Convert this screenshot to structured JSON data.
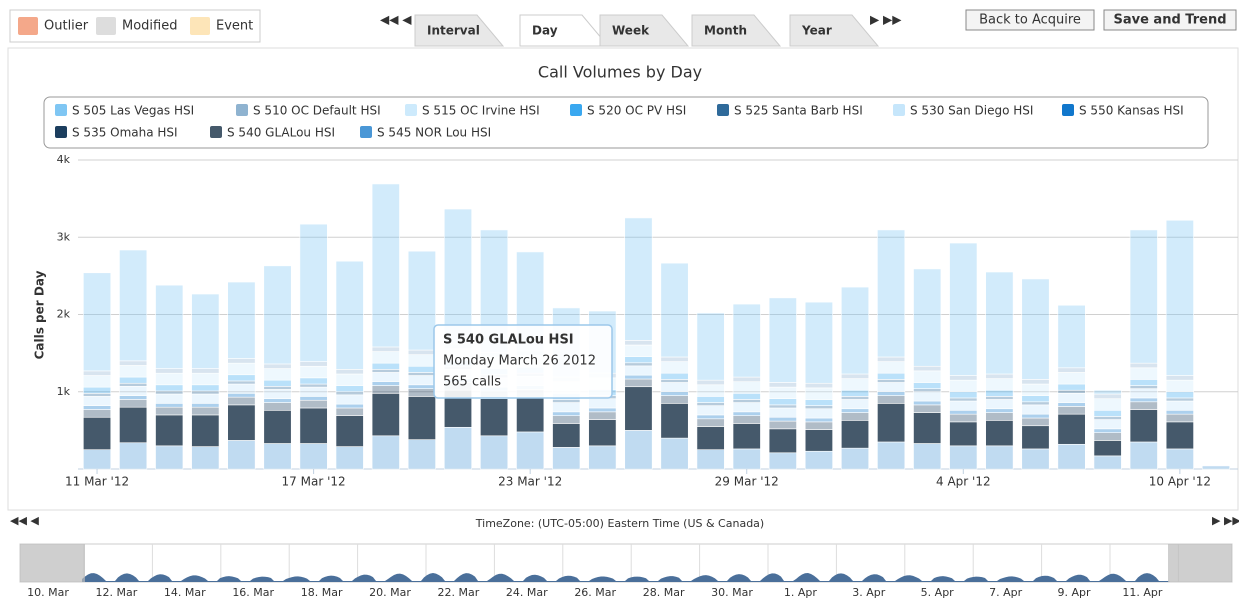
{
  "flags": [
    "Outlier",
    "Modified",
    "Event"
  ],
  "tabs": [
    "Interval",
    "Day",
    "Week",
    "Month",
    "Year"
  ],
  "buttons": [
    "Back to Acquire",
    "Save and Trend"
  ],
  "timezone": "TimeZone: (UTC-05:00) Eastern Time (US & Canada)",
  "navigator_labels": [
    "10. Mar",
    "12. Mar",
    "14. Mar",
    "16. Mar",
    "18. Mar",
    "20. Mar",
    "22. Mar",
    "24. Mar",
    "26. Mar",
    "28. Mar",
    "30. Mar",
    "1. Apr",
    "3. Apr",
    "5. Apr",
    "7. Apr",
    "9. Apr",
    "11. Apr"
  ],
  "tooltip": {
    "title": "S 540 GLALou HSI",
    "date": "Monday March 26 2012",
    "text": "565 calls"
  },
  "chart_data": {
    "type": "stacked_bar",
    "title": "Call Volumes by Day",
    "y_label": "Calls per Day",
    "categories": [
      "11 Mar '12",
      null,
      null,
      null,
      null,
      null,
      "17 Mar '12",
      null,
      null,
      null,
      null,
      null,
      "23 Mar '12",
      null,
      null,
      null,
      null,
      null,
      "29 Mar '12",
      null,
      null,
      null,
      null,
      null,
      "4 Apr '12",
      null,
      null,
      null,
      null,
      null,
      "10 Apr '12",
      null
    ],
    "ylim": [
      0,
      4000
    ],
    "yticks": [
      {
        "value": 1000,
        "label": "1k"
      },
      {
        "value": 2000,
        "label": "2k"
      },
      {
        "value": 3000,
        "label": "3k"
      },
      {
        "value": 4000,
        "label": "4k"
      }
    ],
    "grid": true,
    "highlight": "S 540 GLALou HSI",
    "series": [
      {
        "name": "S 505 Las Vegas HSI",
        "color": "#7fc6f3",
        "values": [
          1270,
          1435,
          1080,
          965,
          990,
          1270,
          1780,
          1400,
          2110,
          1280,
          1745,
          1585,
          1280,
          895,
          805,
          1585,
          1215,
          870,
          945,
          1095,
          1050,
          1125,
          1645,
          1260,
          1715,
          1320,
          1300,
          810,
          50,
          1725,
          2010,
          0
        ]
      },
      {
        "name": "S 510 OC Default HSI",
        "color": "#8fb3d0",
        "values": [
          60,
          60,
          60,
          60,
          60,
          60,
          60,
          60,
          60,
          60,
          60,
          60,
          60,
          60,
          60,
          60,
          60,
          60,
          60,
          60,
          60,
          60,
          60,
          60,
          60,
          60,
          60,
          60,
          60,
          60,
          60,
          0
        ]
      },
      {
        "name": "S 515 OC Irvine HSI",
        "color": "#cdeafc",
        "values": [
          150,
          150,
          150,
          150,
          150,
          150,
          150,
          150,
          150,
          150,
          150,
          150,
          150,
          150,
          150,
          150,
          150,
          150,
          150,
          150,
          150,
          150,
          150,
          150,
          150,
          150,
          150,
          150,
          150,
          150,
          150,
          0
        ]
      },
      {
        "name": "S 520 OC PV HSI",
        "color": "#3aa8f0",
        "values": [
          80,
          80,
          80,
          80,
          80,
          80,
          80,
          80,
          80,
          80,
          80,
          80,
          80,
          80,
          80,
          80,
          80,
          80,
          80,
          80,
          80,
          80,
          80,
          80,
          80,
          80,
          80,
          80,
          80,
          80,
          80,
          0
        ]
      },
      {
        "name": "S 525 Santa Barb HSI",
        "color": "#2f6a9a",
        "values": [
          40,
          40,
          40,
          40,
          40,
          40,
          40,
          40,
          40,
          40,
          40,
          40,
          40,
          40,
          40,
          40,
          40,
          40,
          40,
          40,
          40,
          40,
          40,
          40,
          40,
          40,
          40,
          40,
          40,
          40,
          40,
          0
        ]
      },
      {
        "name": "S 530 San Diego HSI",
        "color": "#c6e6fb",
        "values": [
          120,
          120,
          120,
          120,
          120,
          120,
          120,
          120,
          120,
          120,
          120,
          120,
          120,
          120,
          120,
          120,
          120,
          120,
          120,
          120,
          120,
          120,
          120,
          120,
          120,
          120,
          120,
          120,
          120,
          120,
          120,
          0
        ]
      },
      {
        "name": "S 550 Kansas HSI",
        "color": "#1177cc",
        "values": [
          50,
          50,
          50,
          50,
          50,
          50,
          50,
          50,
          50,
          50,
          50,
          50,
          50,
          50,
          50,
          50,
          50,
          50,
          50,
          50,
          50,
          50,
          50,
          50,
          50,
          50,
          50,
          50,
          50,
          50,
          50,
          0
        ]
      },
      {
        "name": "S 535 Omaha HSI",
        "color": "#1c3e5e",
        "values": [
          100,
          100,
          100,
          100,
          100,
          100,
          100,
          100,
          100,
          100,
          100,
          100,
          100,
          100,
          100,
          100,
          100,
          100,
          100,
          100,
          100,
          100,
          100,
          100,
          100,
          100,
          100,
          100,
          100,
          100,
          100,
          0
        ]
      },
      {
        "name": "S 540 GLALou HSI",
        "color": "#45596b",
        "values": [
          420,
          460,
          400,
          410,
          460,
          430,
          460,
          400,
          550,
          560,
          480,
          480,
          450,
          310,
          340,
          565,
          450,
          300,
          330,
          310,
          280,
          360,
          500,
          400,
          310,
          330,
          300,
          390,
          200,
          420,
          350,
          0
        ]
      },
      {
        "name": "S 545 NOR Lou HSI",
        "color": "#4a97d6",
        "values": [
          250,
          340,
          300,
          290,
          370,
          330,
          330,
          290,
          430,
          380,
          540,
          430,
          480,
          280,
          300,
          500,
          400,
          250,
          260,
          210,
          230,
          270,
          350,
          330,
          300,
          300,
          260,
          320,
          170,
          350,
          260,
          40
        ]
      }
    ]
  }
}
